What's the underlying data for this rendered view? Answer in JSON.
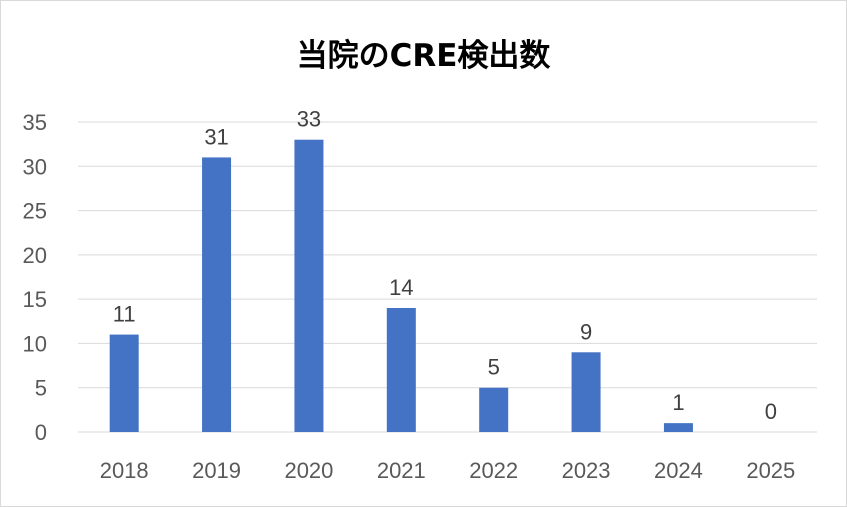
{
  "chart_data": {
    "type": "bar",
    "title": "当院のCRE検出数",
    "xlabel": "",
    "ylabel": "",
    "categories": [
      "2018",
      "2019",
      "2020",
      "2021",
      "2022",
      "2023",
      "2024",
      "2025"
    ],
    "values": [
      11,
      31,
      33,
      14,
      5,
      9,
      1,
      0
    ],
    "ylim": [
      0,
      35
    ],
    "yticks": [
      0,
      5,
      10,
      15,
      20,
      25,
      30,
      35
    ],
    "grid": true,
    "data_labels": true,
    "bar_color": "#4472c4",
    "grid_color": "#d9d9d9"
  }
}
